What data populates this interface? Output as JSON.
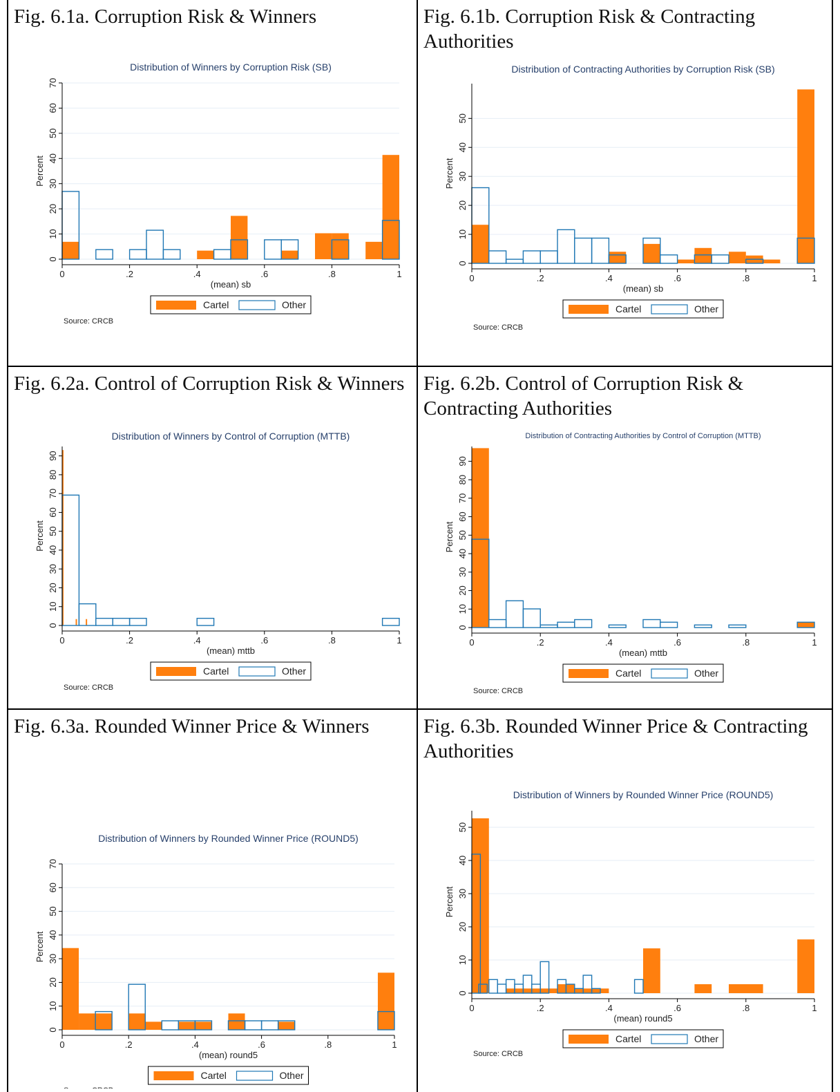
{
  "page": {
    "colors": {
      "cartel": "#ff7f0e",
      "other_outline": "#1f77b4",
      "grid": "#e6eef6",
      "axis": "#000000",
      "title": "#27406b"
    }
  },
  "legend_labels": {
    "cartel": "Cartel",
    "other": "Other"
  },
  "source_text": "Source: CRCB",
  "ylabel": "Percent",
  "xticks": [
    0,
    0.2,
    0.4,
    0.6,
    0.8,
    1
  ],
  "xtick_labels": [
    "0",
    ".2",
    ".4",
    ".6",
    ".8",
    "1"
  ],
  "cells": [
    {
      "fig_title": "Fig. 6.1a. Corruption Risk & Winners",
      "chart_data": {
        "type": "bar",
        "title": "Distribution of Winners by Corruption Risk (SB)",
        "xlabel": "(mean) sb",
        "ylabel": "Percent",
        "xlim": [
          0,
          1
        ],
        "ylim": [
          0,
          70
        ],
        "yticks": [
          0,
          10,
          20,
          30,
          40,
          50,
          60,
          70
        ],
        "bin_width": 0.05,
        "grid": true,
        "legend": "bottom-center",
        "series": [
          {
            "name": "Cartel",
            "x": [
              0,
              0.4,
              0.5,
              0.65,
              0.75,
              0.8,
              0.9,
              0.95
            ],
            "values": [
              6.9,
              3.4,
              17.2,
              3.4,
              10.3,
              10.3,
              6.9,
              41.4
            ]
          },
          {
            "name": "Other",
            "x": [
              0,
              0.1,
              0.2,
              0.25,
              0.3,
              0.45,
              0.5,
              0.6,
              0.65,
              0.8,
              0.95
            ],
            "values": [
              26.9,
              3.8,
              3.8,
              11.5,
              3.8,
              3.8,
              7.7,
              7.7,
              7.7,
              7.7,
              15.4
            ]
          }
        ]
      }
    },
    {
      "fig_title": "Fig. 6.1b. Corruption Risk & Contracting Authorities",
      "chart_data": {
        "type": "bar",
        "title": "Distribution of Contracting Authorities by Corruption Risk (SB)",
        "xlabel": "(mean) sb",
        "ylabel": "Percent",
        "xlim": [
          0,
          1
        ],
        "ylim": [
          0,
          62
        ],
        "yticks": [
          0,
          10,
          20,
          30,
          40,
          50
        ],
        "bin_width": 0.05,
        "grid": true,
        "legend": "bottom-center",
        "series": [
          {
            "name": "Cartel",
            "x": [
              0,
              0.4,
              0.5,
              0.6,
              0.65,
              0.75,
              0.8,
              0.85,
              0.95
            ],
            "values": [
              13.3,
              4.0,
              6.7,
              1.3,
              5.3,
              4.0,
              2.7,
              1.3,
              60.0
            ]
          },
          {
            "name": "Other",
            "x": [
              0,
              0.05,
              0.1,
              0.15,
              0.2,
              0.25,
              0.3,
              0.35,
              0.4,
              0.5,
              0.55,
              0.65,
              0.7,
              0.8,
              0.95
            ],
            "values": [
              26.1,
              4.3,
              1.4,
              4.3,
              4.3,
              11.6,
              8.7,
              8.7,
              2.9,
              8.7,
              2.9,
              2.9,
              2.9,
              1.4,
              8.7
            ]
          }
        ]
      }
    },
    {
      "fig_title": "Fig. 6.2a. Control of Corruption Risk & Winners",
      "chart_data": {
        "type": "bar",
        "title": "Distribution of Winners by Control of Corruption (MTTB)",
        "xlabel": "(mean) mttb",
        "ylabel": "Percent",
        "xlim": [
          0,
          1
        ],
        "ylim": [
          0,
          95
        ],
        "yticks": [
          0,
          10,
          20,
          30,
          40,
          50,
          60,
          70,
          80,
          90
        ],
        "grid": false,
        "legend": "bottom-center",
        "series": [
          {
            "name": "Cartel",
            "x": [
              0,
              0.04,
              0.07
            ],
            "widths": [
              0.004,
              0.004,
              0.004
            ],
            "values": [
              93.1,
              3.4,
              3.4
            ]
          },
          {
            "name": "Other",
            "x": [
              0,
              0.05,
              0.1,
              0.15,
              0.2,
              0.4,
              0.95
            ],
            "widths": [
              0.05,
              0.05,
              0.05,
              0.05,
              0.05,
              0.05,
              0.05
            ],
            "values": [
              69.2,
              11.5,
              3.8,
              3.8,
              3.8,
              3.8,
              3.8
            ]
          }
        ]
      }
    },
    {
      "fig_title": "Fig. 6.2b. Control of Corruption Risk & Contracting Authorities",
      "chart_data": {
        "type": "bar",
        "title": "Distribution of Contracting Authorities by Control of Corruption (MTTB)",
        "xlabel": "(mean) mttb",
        "ylabel": "Percent",
        "xlim": [
          0,
          1
        ],
        "ylim": [
          0,
          98
        ],
        "yticks": [
          0,
          10,
          20,
          30,
          40,
          50,
          60,
          70,
          80,
          90
        ],
        "bin_width": 0.05,
        "grid": false,
        "legend": "bottom-center",
        "series": [
          {
            "name": "Cartel",
            "x": [
              0,
              0.95
            ],
            "values": [
              97.1,
              2.9
            ]
          },
          {
            "name": "Other",
            "x": [
              0,
              0.05,
              0.1,
              0.15,
              0.2,
              0.25,
              0.3,
              0.4,
              0.5,
              0.55,
              0.65,
              0.75,
              0.95
            ],
            "values": [
              47.8,
              4.3,
              14.5,
              10.1,
              1.4,
              2.9,
              4.3,
              1.4,
              4.3,
              2.9,
              1.4,
              1.4,
              2.9
            ]
          }
        ]
      }
    },
    {
      "fig_title": "Fig. 6.3a. Rounded Winner Price & Winners",
      "chart_data": {
        "type": "bar",
        "title": "Distribution of Winners by Rounded Winner Price (ROUND5)",
        "xlabel": "(mean) round5",
        "ylabel": "Percent",
        "xlim": [
          0,
          1
        ],
        "ylim": [
          0,
          70
        ],
        "yticks": [
          0,
          10,
          20,
          30,
          40,
          50,
          60,
          70
        ],
        "bin_width": 0.05,
        "grid": true,
        "legend": "bottom-center",
        "series": [
          {
            "name": "Cartel",
            "x": [
              0,
              0.05,
              0.1,
              0.2,
              0.25,
              0.35,
              0.4,
              0.5,
              0.65,
              0.95
            ],
            "values": [
              34.5,
              6.9,
              6.9,
              6.9,
              3.4,
              3.4,
              3.4,
              6.9,
              3.4,
              24.1
            ]
          },
          {
            "name": "Other",
            "x": [
              0.1,
              0.2,
              0.3,
              0.35,
              0.4,
              0.5,
              0.55,
              0.6,
              0.65,
              0.95
            ],
            "values": [
              7.7,
              19.2,
              3.8,
              3.8,
              3.8,
              3.8,
              3.8,
              3.8,
              3.8,
              7.7
            ]
          }
        ]
      }
    },
    {
      "fig_title": "Fig. 6.3b. Rounded Winner Price & Contracting Authorities",
      "chart_data": {
        "type": "bar",
        "title": "Distribution of Winners by Rounded Winner Price (ROUND5)",
        "xlabel": "(mean) round5",
        "ylabel": "Percent",
        "xlim": [
          0,
          1
        ],
        "ylim": [
          0,
          55
        ],
        "yticks": [
          0,
          10,
          20,
          30,
          40,
          50
        ],
        "grid": true,
        "legend": "bottom-center",
        "series": [
          {
            "name": "Cartel",
            "x": [
              0,
              0.1,
              0.15,
              0.2,
              0.25,
              0.3,
              0.35,
              0.5,
              0.65,
              0.75,
              0.95
            ],
            "widths": [
              0.05,
              0.05,
              0.05,
              0.05,
              0.05,
              0.05,
              0.05,
              0.05,
              0.05,
              0.1,
              0.05
            ],
            "values": [
              52.7,
              1.4,
              1.4,
              1.4,
              2.7,
              1.4,
              1.4,
              13.5,
              2.7,
              2.7,
              16.2
            ]
          },
          {
            "name": "Other",
            "x": [
              0,
              0.02,
              0.05,
              0.075,
              0.1,
              0.125,
              0.15,
              0.175,
              0.2,
              0.25,
              0.275,
              0.3,
              0.325,
              0.35,
              0.475
            ],
            "widths": [
              0.025,
              0.025,
              0.025,
              0.025,
              0.025,
              0.025,
              0.025,
              0.025,
              0.025,
              0.025,
              0.025,
              0.025,
              0.025,
              0.025,
              0.025
            ],
            "values": [
              41.9,
              2.7,
              4.1,
              2.7,
              4.1,
              2.7,
              5.4,
              2.7,
              9.5,
              4.1,
              2.7,
              1.4,
              5.4,
              1.4,
              4.1
            ]
          }
        ]
      }
    }
  ]
}
